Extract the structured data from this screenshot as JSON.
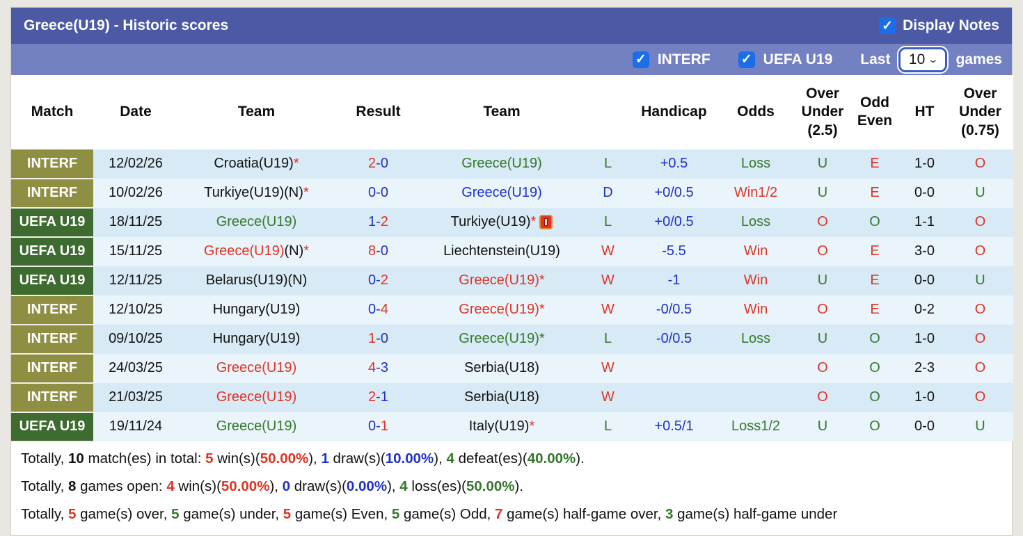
{
  "colors": {
    "red": "#dd3425",
    "blue": "#2030c8",
    "green": "#34782a",
    "black": "#111111",
    "titlebar_bg": "#4c59a5",
    "filterbar_bg": "#7380c1",
    "checkbox_bg": "#1a6fe8",
    "badge_interf_bg": "#8f8f44",
    "badge_uefa_bg": "#3e6b2f",
    "row_odd_bg": "#d8eaf6",
    "row_even_bg": "#eaf4fb"
  },
  "header": {
    "title": "Greece(U19) - Historic scores",
    "display_notes": {
      "label": "Display Notes",
      "checked": true
    }
  },
  "filter_bar": {
    "checkboxes": [
      {
        "label": "INTERF",
        "checked": true
      },
      {
        "label": "UEFA U19",
        "checked": true
      }
    ],
    "last_label": "Last",
    "games_count": "10",
    "games_label": "games"
  },
  "table": {
    "columns": [
      "Match",
      "Date",
      "Team",
      "Result",
      "Team",
      "",
      "Handicap",
      "Odds",
      "Over\nUnder\n(2.5)",
      "Odd\nEven",
      "HT",
      "Over\nUnder\n(0.75)"
    ],
    "rows": [
      {
        "match": "INTERF",
        "match_type": "interf",
        "date": "12/02/26",
        "home": [
          {
            "t": "Croatia(U19)",
            "c": "black"
          },
          {
            "t": "*",
            "c": "red"
          }
        ],
        "result": [
          {
            "t": "2",
            "c": "red"
          },
          {
            "t": "-0",
            "c": "blue"
          }
        ],
        "away": [
          {
            "t": "Greece(U19)",
            "c": "green"
          }
        ],
        "away_icon": null,
        "wdl": {
          "t": "L",
          "c": "green"
        },
        "handicap": "+0.5",
        "odds": {
          "t": "Loss",
          "c": "green"
        },
        "ou25": {
          "t": "U",
          "c": "green"
        },
        "oddeven": {
          "t": "E",
          "c": "red"
        },
        "ht": "1-0",
        "ou075": {
          "t": "O",
          "c": "red"
        }
      },
      {
        "match": "INTERF",
        "match_type": "interf",
        "date": "10/02/26",
        "home": [
          {
            "t": "Turkiye(U19)(N)",
            "c": "black"
          },
          {
            "t": "*",
            "c": "red"
          }
        ],
        "result": [
          {
            "t": "0-0",
            "c": "blue"
          }
        ],
        "away": [
          {
            "t": "Greece(U19)",
            "c": "blue"
          }
        ],
        "away_icon": null,
        "wdl": {
          "t": "D",
          "c": "blue"
        },
        "handicap": "+0/0.5",
        "odds": {
          "t": "Win1/2",
          "c": "red"
        },
        "ou25": {
          "t": "U",
          "c": "green"
        },
        "oddeven": {
          "t": "E",
          "c": "red"
        },
        "ht": "0-0",
        "ou075": {
          "t": "U",
          "c": "green"
        }
      },
      {
        "match": "UEFA U19",
        "match_type": "uefa",
        "date": "18/11/25",
        "home": [
          {
            "t": "Greece(U19)",
            "c": "green"
          }
        ],
        "result": [
          {
            "t": "1-",
            "c": "blue"
          },
          {
            "t": "2",
            "c": "red"
          }
        ],
        "away": [
          {
            "t": "Turkiye(U19)",
            "c": "black"
          },
          {
            "t": "*",
            "c": "red"
          }
        ],
        "away_icon": "red-card-icon",
        "wdl": {
          "t": "L",
          "c": "green"
        },
        "handicap": "+0/0.5",
        "odds": {
          "t": "Loss",
          "c": "green"
        },
        "ou25": {
          "t": "O",
          "c": "red"
        },
        "oddeven": {
          "t": "O",
          "c": "green"
        },
        "ht": "1-1",
        "ou075": {
          "t": "O",
          "c": "red"
        }
      },
      {
        "match": "UEFA U19",
        "match_type": "uefa",
        "date": "15/11/25",
        "home": [
          {
            "t": "Greece(U19)",
            "c": "red"
          },
          {
            "t": "(N)",
            "c": "black"
          },
          {
            "t": "*",
            "c": "red"
          }
        ],
        "result": [
          {
            "t": "8",
            "c": "red"
          },
          {
            "t": "-0",
            "c": "blue"
          }
        ],
        "away": [
          {
            "t": "Liechtenstein(U19)",
            "c": "black"
          }
        ],
        "away_icon": null,
        "wdl": {
          "t": "W",
          "c": "red"
        },
        "handicap": "-5.5",
        "odds": {
          "t": "Win",
          "c": "red"
        },
        "ou25": {
          "t": "O",
          "c": "red"
        },
        "oddeven": {
          "t": "E",
          "c": "red"
        },
        "ht": "3-0",
        "ou075": {
          "t": "O",
          "c": "red"
        }
      },
      {
        "match": "UEFA U19",
        "match_type": "uefa",
        "date": "12/11/25",
        "home": [
          {
            "t": "Belarus(U19)(N)",
            "c": "black"
          }
        ],
        "result": [
          {
            "t": "0-",
            "c": "blue"
          },
          {
            "t": "2",
            "c": "red"
          }
        ],
        "away": [
          {
            "t": "Greece(U19)*",
            "c": "red"
          }
        ],
        "away_icon": null,
        "wdl": {
          "t": "W",
          "c": "red"
        },
        "handicap": "-1",
        "odds": {
          "t": "Win",
          "c": "red"
        },
        "ou25": {
          "t": "U",
          "c": "green"
        },
        "oddeven": {
          "t": "E",
          "c": "red"
        },
        "ht": "0-0",
        "ou075": {
          "t": "U",
          "c": "green"
        }
      },
      {
        "match": "INTERF",
        "match_type": "interf",
        "date": "12/10/25",
        "home": [
          {
            "t": "Hungary(U19)",
            "c": "black"
          }
        ],
        "result": [
          {
            "t": "0-",
            "c": "blue"
          },
          {
            "t": "4",
            "c": "red"
          }
        ],
        "away": [
          {
            "t": "Greece(U19)*",
            "c": "red"
          }
        ],
        "away_icon": null,
        "wdl": {
          "t": "W",
          "c": "red"
        },
        "handicap": "-0/0.5",
        "odds": {
          "t": "Win",
          "c": "red"
        },
        "ou25": {
          "t": "O",
          "c": "red"
        },
        "oddeven": {
          "t": "E",
          "c": "red"
        },
        "ht": "0-2",
        "ou075": {
          "t": "O",
          "c": "red"
        }
      },
      {
        "match": "INTERF",
        "match_type": "interf",
        "date": "09/10/25",
        "home": [
          {
            "t": "Hungary(U19)",
            "c": "black"
          }
        ],
        "result": [
          {
            "t": "1",
            "c": "red"
          },
          {
            "t": "-0",
            "c": "blue"
          }
        ],
        "away": [
          {
            "t": "Greece(U19)*",
            "c": "green"
          }
        ],
        "away_icon": null,
        "wdl": {
          "t": "L",
          "c": "green"
        },
        "handicap": "-0/0.5",
        "odds": {
          "t": "Loss",
          "c": "green"
        },
        "ou25": {
          "t": "U",
          "c": "green"
        },
        "oddeven": {
          "t": "O",
          "c": "green"
        },
        "ht": "1-0",
        "ou075": {
          "t": "O",
          "c": "red"
        }
      },
      {
        "match": "INTERF",
        "match_type": "interf",
        "date": "24/03/25",
        "home": [
          {
            "t": "Greece(U19)",
            "c": "red"
          }
        ],
        "result": [
          {
            "t": "4",
            "c": "red"
          },
          {
            "t": "-3",
            "c": "blue"
          }
        ],
        "away": [
          {
            "t": "Serbia(U18)",
            "c": "black"
          }
        ],
        "away_icon": null,
        "wdl": {
          "t": "W",
          "c": "red"
        },
        "handicap": "",
        "odds": {
          "t": "",
          "c": "black"
        },
        "ou25": {
          "t": "O",
          "c": "red"
        },
        "oddeven": {
          "t": "O",
          "c": "green"
        },
        "ht": "2-3",
        "ou075": {
          "t": "O",
          "c": "red"
        }
      },
      {
        "match": "INTERF",
        "match_type": "interf",
        "date": "21/03/25",
        "home": [
          {
            "t": "Greece(U19)",
            "c": "red"
          }
        ],
        "result": [
          {
            "t": "2",
            "c": "red"
          },
          {
            "t": "-1",
            "c": "blue"
          }
        ],
        "away": [
          {
            "t": "Serbia(U18)",
            "c": "black"
          }
        ],
        "away_icon": null,
        "wdl": {
          "t": "W",
          "c": "red"
        },
        "handicap": "",
        "odds": {
          "t": "",
          "c": "black"
        },
        "ou25": {
          "t": "O",
          "c": "red"
        },
        "oddeven": {
          "t": "O",
          "c": "green"
        },
        "ht": "1-0",
        "ou075": {
          "t": "O",
          "c": "red"
        }
      },
      {
        "match": "UEFA U19",
        "match_type": "uefa",
        "date": "19/11/24",
        "home": [
          {
            "t": "Greece(U19)",
            "c": "green"
          }
        ],
        "result": [
          {
            "t": "0-",
            "c": "blue"
          },
          {
            "t": "1",
            "c": "red"
          }
        ],
        "away": [
          {
            "t": "Italy(U19)",
            "c": "black"
          },
          {
            "t": "*",
            "c": "red"
          }
        ],
        "away_icon": null,
        "wdl": {
          "t": "L",
          "c": "green"
        },
        "handicap": "+0.5/1",
        "odds": {
          "t": "Loss1/2",
          "c": "green"
        },
        "ou25": {
          "t": "U",
          "c": "green"
        },
        "oddeven": {
          "t": "O",
          "c": "green"
        },
        "ht": "0-0",
        "ou075": {
          "t": "U",
          "c": "green"
        }
      }
    ]
  },
  "footer": {
    "lines": [
      [
        {
          "t": "Totally, ",
          "c": "black"
        },
        {
          "t": "10",
          "c": "black",
          "b": true
        },
        {
          "t": " match(es) in total: ",
          "c": "black"
        },
        {
          "t": "5",
          "c": "red",
          "b": true
        },
        {
          "t": " win(s)(",
          "c": "black"
        },
        {
          "t": "50.00%",
          "c": "red",
          "b": true
        },
        {
          "t": "), ",
          "c": "black"
        },
        {
          "t": "1",
          "c": "blue",
          "b": true
        },
        {
          "t": " draw(s)(",
          "c": "black"
        },
        {
          "t": "10.00%",
          "c": "blue",
          "b": true
        },
        {
          "t": "), ",
          "c": "black"
        },
        {
          "t": "4",
          "c": "green",
          "b": true
        },
        {
          "t": " defeat(es)(",
          "c": "black"
        },
        {
          "t": "40.00%",
          "c": "green",
          "b": true
        },
        {
          "t": ").",
          "c": "black"
        }
      ],
      [
        {
          "t": "Totally, ",
          "c": "black"
        },
        {
          "t": "8",
          "c": "black",
          "b": true
        },
        {
          "t": " games open: ",
          "c": "black"
        },
        {
          "t": "4",
          "c": "red",
          "b": true
        },
        {
          "t": " win(s)(",
          "c": "black"
        },
        {
          "t": "50.00%",
          "c": "red",
          "b": true
        },
        {
          "t": "), ",
          "c": "black"
        },
        {
          "t": "0",
          "c": "blue",
          "b": true
        },
        {
          "t": " draw(s)(",
          "c": "black"
        },
        {
          "t": "0.00%",
          "c": "blue",
          "b": true
        },
        {
          "t": "), ",
          "c": "black"
        },
        {
          "t": "4",
          "c": "green",
          "b": true
        },
        {
          "t": " loss(es)(",
          "c": "black"
        },
        {
          "t": "50.00%",
          "c": "green",
          "b": true
        },
        {
          "t": ").",
          "c": "black"
        }
      ],
      [
        {
          "t": "Totally, ",
          "c": "black"
        },
        {
          "t": "5",
          "c": "red",
          "b": true
        },
        {
          "t": " game(s) over, ",
          "c": "black"
        },
        {
          "t": "5",
          "c": "green",
          "b": true
        },
        {
          "t": " game(s) under, ",
          "c": "black"
        },
        {
          "t": "5",
          "c": "red",
          "b": true
        },
        {
          "t": " game(s) Even, ",
          "c": "black"
        },
        {
          "t": "5",
          "c": "green",
          "b": true
        },
        {
          "t": " game(s) Odd, ",
          "c": "black"
        },
        {
          "t": "7",
          "c": "red",
          "b": true
        },
        {
          "t": " game(s) half-game over, ",
          "c": "black"
        },
        {
          "t": "3",
          "c": "green",
          "b": true
        },
        {
          "t": " game(s) half-game under",
          "c": "black"
        }
      ]
    ]
  }
}
